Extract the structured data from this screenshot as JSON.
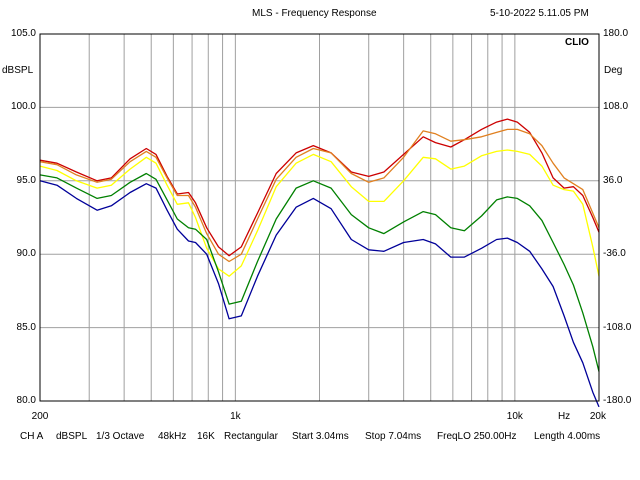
{
  "header": {
    "title": "MLS - Frequency Response",
    "datetime": "5-10-2022 5.11.05 PM",
    "brand": "CLIO"
  },
  "footer": {
    "channel": "CH A",
    "unit": "dBSPL",
    "smoothing": "1/3 Octave",
    "sample_rate": "48kHz",
    "size": "16K",
    "window": "Rectangular",
    "start": "Start 3.04ms",
    "stop": "Stop 7.04ms",
    "freq_lo": "FreqLO 250.00Hz",
    "length": "Length 4.00ms"
  },
  "chart_data": {
    "type": "line",
    "title": "MLS - Frequency Response",
    "xscale": "log",
    "xlim": [
      200,
      20000
    ],
    "ylim": [
      80,
      105
    ],
    "y2lim": [
      -180,
      180
    ],
    "grid": true,
    "ylabel": "dBSPL",
    "y2label": "Deg",
    "xlabel": "Hz",
    "x_ticks": [
      {
        "v": 200,
        "label": "200"
      },
      {
        "v": 1000,
        "label": "1k"
      },
      {
        "v": 10000,
        "label": "10k"
      },
      {
        "v": 20000,
        "label": "20k"
      }
    ],
    "x_unit_tick": {
      "v": 15000,
      "label": "Hz"
    },
    "y_ticks": [
      {
        "v": 105,
        "label": "105.0"
      },
      {
        "v": 100,
        "label": "100.0"
      },
      {
        "v": 95,
        "label": "95.0"
      },
      {
        "v": 90,
        "label": "90.0"
      },
      {
        "v": 85,
        "label": "85.0"
      },
      {
        "v": 80,
        "label": "80.0"
      }
    ],
    "y2_ticks": [
      {
        "v": 180,
        "label": "180.0"
      },
      {
        "v": 108,
        "label": "108.0"
      },
      {
        "v": 36,
        "label": "36.0"
      },
      {
        "v": -36,
        "label": "-36.0"
      },
      {
        "v": -108,
        "label": "-108.0"
      },
      {
        "v": -180,
        "label": "-180.0"
      }
    ],
    "series": [
      {
        "name": "red",
        "color": "#cc0000",
        "points": [
          [
            200,
            96.4
          ],
          [
            230,
            96.2
          ],
          [
            270,
            95.6
          ],
          [
            320,
            95.0
          ],
          [
            360,
            95.2
          ],
          [
            420,
            96.5
          ],
          [
            480,
            97.2
          ],
          [
            520,
            96.8
          ],
          [
            570,
            95.3
          ],
          [
            620,
            94.1
          ],
          [
            680,
            94.2
          ],
          [
            720,
            93.5
          ],
          [
            790,
            91.8
          ],
          [
            870,
            90.5
          ],
          [
            950,
            89.9
          ],
          [
            1050,
            90.5
          ],
          [
            1200,
            92.8
          ],
          [
            1400,
            95.5
          ],
          [
            1650,
            96.9
          ],
          [
            1900,
            97.4
          ],
          [
            2200,
            96.9
          ],
          [
            2600,
            95.6
          ],
          [
            3000,
            95.3
          ],
          [
            3400,
            95.6
          ],
          [
            4000,
            96.8
          ],
          [
            4700,
            98.0
          ],
          [
            5200,
            97.6
          ],
          [
            5900,
            97.3
          ],
          [
            6600,
            97.8
          ],
          [
            7600,
            98.5
          ],
          [
            8600,
            99.0
          ],
          [
            9400,
            99.2
          ],
          [
            10200,
            99.0
          ],
          [
            11300,
            98.3
          ],
          [
            12500,
            96.9
          ],
          [
            13700,
            95.2
          ],
          [
            15000,
            94.5
          ],
          [
            16200,
            94.6
          ],
          [
            17500,
            94.0
          ],
          [
            19000,
            92.5
          ],
          [
            20000,
            91.5
          ]
        ]
      },
      {
        "name": "orange",
        "color": "#e08020",
        "points": [
          [
            200,
            96.3
          ],
          [
            230,
            96.1
          ],
          [
            270,
            95.4
          ],
          [
            320,
            94.9
          ],
          [
            360,
            95.1
          ],
          [
            420,
            96.3
          ],
          [
            480,
            97.0
          ],
          [
            520,
            96.6
          ],
          [
            570,
            95.2
          ],
          [
            620,
            94.0
          ],
          [
            680,
            94.0
          ],
          [
            720,
            93.2
          ],
          [
            790,
            91.4
          ],
          [
            870,
            90.0
          ],
          [
            950,
            89.5
          ],
          [
            1050,
            90.0
          ],
          [
            1200,
            92.4
          ],
          [
            1400,
            95.1
          ],
          [
            1650,
            96.6
          ],
          [
            1900,
            97.2
          ],
          [
            2200,
            96.9
          ],
          [
            2600,
            95.5
          ],
          [
            3000,
            94.9
          ],
          [
            3400,
            95.2
          ],
          [
            4000,
            96.6
          ],
          [
            4700,
            98.4
          ],
          [
            5200,
            98.2
          ],
          [
            5900,
            97.7
          ],
          [
            6600,
            97.8
          ],
          [
            7600,
            98.0
          ],
          [
            8600,
            98.3
          ],
          [
            9400,
            98.5
          ],
          [
            10200,
            98.5
          ],
          [
            11300,
            98.2
          ],
          [
            12500,
            97.4
          ],
          [
            13700,
            96.2
          ],
          [
            15000,
            95.2
          ],
          [
            16200,
            94.8
          ],
          [
            17500,
            94.4
          ],
          [
            19000,
            92.8
          ],
          [
            20000,
            91.8
          ]
        ]
      },
      {
        "name": "yellow",
        "color": "#ffff00",
        "points": [
          [
            200,
            96.0
          ],
          [
            230,
            95.7
          ],
          [
            270,
            95.0
          ],
          [
            320,
            94.5
          ],
          [
            360,
            94.7
          ],
          [
            420,
            95.8
          ],
          [
            480,
            96.6
          ],
          [
            520,
            96.2
          ],
          [
            570,
            94.7
          ],
          [
            620,
            93.4
          ],
          [
            680,
            93.5
          ],
          [
            720,
            92.5
          ],
          [
            790,
            90.4
          ],
          [
            870,
            89.0
          ],
          [
            950,
            88.5
          ],
          [
            1050,
            89.2
          ],
          [
            1200,
            91.6
          ],
          [
            1400,
            94.6
          ],
          [
            1650,
            96.2
          ],
          [
            1900,
            96.8
          ],
          [
            2200,
            96.3
          ],
          [
            2600,
            94.6
          ],
          [
            3000,
            93.6
          ],
          [
            3400,
            93.6
          ],
          [
            4000,
            95.0
          ],
          [
            4700,
            96.6
          ],
          [
            5200,
            96.5
          ],
          [
            5900,
            95.8
          ],
          [
            6600,
            96.0
          ],
          [
            7600,
            96.7
          ],
          [
            8600,
            97.0
          ],
          [
            9400,
            97.1
          ],
          [
            10200,
            97.0
          ],
          [
            11300,
            96.8
          ],
          [
            12500,
            96.0
          ],
          [
            13700,
            94.7
          ],
          [
            15000,
            94.4
          ],
          [
            16200,
            94.3
          ],
          [
            17500,
            93.4
          ],
          [
            19000,
            90.5
          ],
          [
            20000,
            88.5
          ]
        ]
      },
      {
        "name": "green",
        "color": "#008000",
        "points": [
          [
            200,
            95.4
          ],
          [
            230,
            95.2
          ],
          [
            270,
            94.5
          ],
          [
            320,
            93.8
          ],
          [
            360,
            94.0
          ],
          [
            420,
            94.9
          ],
          [
            480,
            95.5
          ],
          [
            520,
            95.1
          ],
          [
            570,
            93.7
          ],
          [
            620,
            92.4
          ],
          [
            680,
            91.8
          ],
          [
            720,
            91.7
          ],
          [
            790,
            91.0
          ],
          [
            870,
            88.8
          ],
          [
            950,
            86.6
          ],
          [
            1050,
            86.8
          ],
          [
            1200,
            89.5
          ],
          [
            1400,
            92.4
          ],
          [
            1650,
            94.5
          ],
          [
            1900,
            95.0
          ],
          [
            2200,
            94.5
          ],
          [
            2600,
            92.7
          ],
          [
            3000,
            91.8
          ],
          [
            3400,
            91.4
          ],
          [
            4000,
            92.2
          ],
          [
            4700,
            92.9
          ],
          [
            5200,
            92.7
          ],
          [
            5900,
            91.8
          ],
          [
            6600,
            91.6
          ],
          [
            7600,
            92.6
          ],
          [
            8600,
            93.7
          ],
          [
            9400,
            93.9
          ],
          [
            10200,
            93.8
          ],
          [
            11300,
            93.3
          ],
          [
            12500,
            92.3
          ],
          [
            13700,
            90.8
          ],
          [
            15000,
            89.3
          ],
          [
            16200,
            87.9
          ],
          [
            17500,
            86.0
          ],
          [
            19000,
            83.7
          ],
          [
            20000,
            82.0
          ]
        ]
      },
      {
        "name": "blue",
        "color": "#000099",
        "points": [
          [
            200,
            95.0
          ],
          [
            230,
            94.7
          ],
          [
            270,
            93.8
          ],
          [
            320,
            93.0
          ],
          [
            360,
            93.3
          ],
          [
            420,
            94.2
          ],
          [
            480,
            94.8
          ],
          [
            520,
            94.5
          ],
          [
            570,
            93.0
          ],
          [
            620,
            91.7
          ],
          [
            680,
            90.9
          ],
          [
            720,
            90.8
          ],
          [
            790,
            90.0
          ],
          [
            870,
            88.0
          ],
          [
            950,
            85.6
          ],
          [
            1050,
            85.8
          ],
          [
            1200,
            88.5
          ],
          [
            1400,
            91.3
          ],
          [
            1650,
            93.2
          ],
          [
            1900,
            93.8
          ],
          [
            2200,
            93.1
          ],
          [
            2600,
            91.0
          ],
          [
            3000,
            90.3
          ],
          [
            3400,
            90.2
          ],
          [
            4000,
            90.8
          ],
          [
            4700,
            91.0
          ],
          [
            5200,
            90.7
          ],
          [
            5900,
            89.8
          ],
          [
            6600,
            89.8
          ],
          [
            7600,
            90.4
          ],
          [
            8600,
            91.0
          ],
          [
            9400,
            91.1
          ],
          [
            10200,
            90.8
          ],
          [
            11300,
            90.2
          ],
          [
            12500,
            89.0
          ],
          [
            13700,
            87.8
          ],
          [
            15000,
            85.8
          ],
          [
            16200,
            84.0
          ],
          [
            17500,
            82.6
          ],
          [
            19000,
            80.6
          ],
          [
            20000,
            79.6
          ]
        ]
      }
    ]
  }
}
